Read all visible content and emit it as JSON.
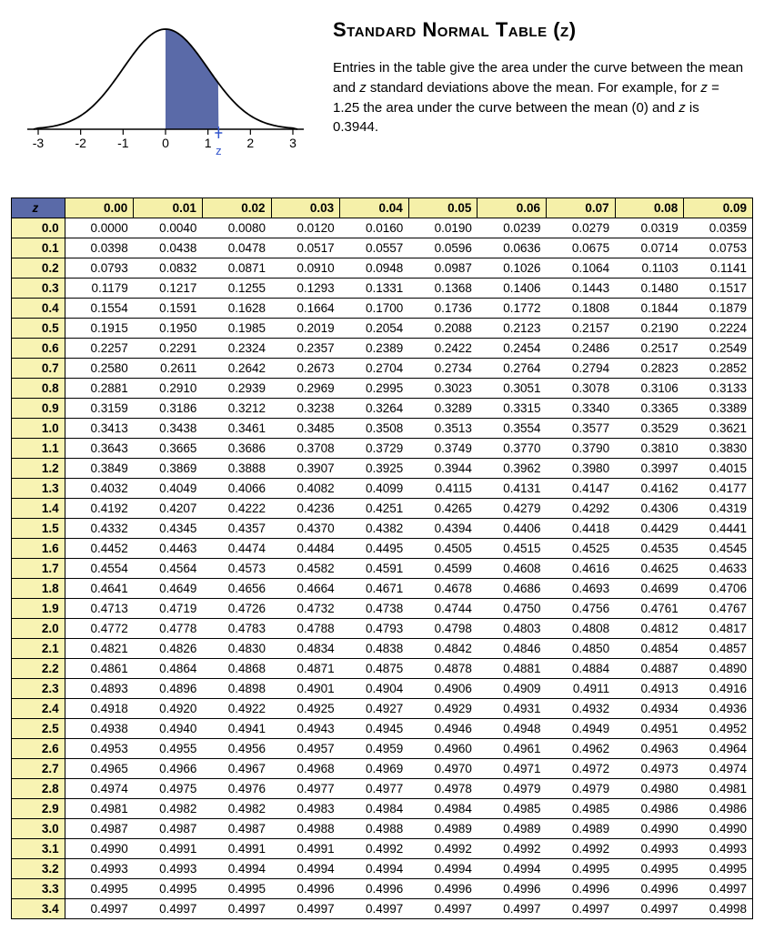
{
  "title": "Standard Normal Table (z)",
  "description_parts": [
    "Entries in the table give the area under the curve between the mean and ",
    "z",
    " standard deviations above the mean. For example, for ",
    "z",
    " = 1.25 the area under the curve between the mean (0)  and ",
    "z",
    "  is 0.3944."
  ],
  "axis_labels": [
    "-3",
    "-2",
    "-1",
    "0",
    "1",
    "2",
    "3"
  ],
  "z_marker": "z",
  "colors": {
    "header_blue": "#5a6aa8",
    "header_yellow": "#f5f0a9",
    "row_yellow": "#f8f3b3",
    "curve_fill": "#5a6aa8",
    "tick_marker": "#3355cc"
  },
  "columns": [
    "z",
    "0.00",
    "0.01",
    "0.02",
    "0.03",
    "0.04",
    "0.05",
    "0.06",
    "0.07",
    "0.08",
    "0.09"
  ],
  "row_headers": [
    "0.0",
    "0.1",
    "0.2",
    "0.3",
    "0.4",
    "0.5",
    "0.6",
    "0.7",
    "0.8",
    "0.9",
    "1.0",
    "1.1",
    "1.2",
    "1.3",
    "1.4",
    "1.5",
    "1.6",
    "1.7",
    "1.8",
    "1.9",
    "2.0",
    "2.1",
    "2.2",
    "2.3",
    "2.4",
    "2.5",
    "2.6",
    "2.7",
    "2.8",
    "2.9",
    "3.0",
    "3.1",
    "3.2",
    "3.3",
    "3.4"
  ],
  "rows": [
    [
      "0.0000",
      "0.0040",
      "0.0080",
      "0.0120",
      "0.0160",
      "0.0190",
      "0.0239",
      "0.0279",
      "0.0319",
      "0.0359"
    ],
    [
      "0.0398",
      "0.0438",
      "0.0478",
      "0.0517",
      "0.0557",
      "0.0596",
      "0.0636",
      "0.0675",
      "0.0714",
      "0.0753"
    ],
    [
      "0.0793",
      "0.0832",
      "0.0871",
      "0.0910",
      "0.0948",
      "0.0987",
      "0.1026",
      "0.1064",
      "0.1103",
      "0.1141"
    ],
    [
      "0.1179",
      "0.1217",
      "0.1255",
      "0.1293",
      "0.1331",
      "0.1368",
      "0.1406",
      "0.1443",
      "0.1480",
      "0.1517"
    ],
    [
      "0.1554",
      "0.1591",
      "0.1628",
      "0.1664",
      "0.1700",
      "0.1736",
      "0.1772",
      "0.1808",
      "0.1844",
      "0.1879"
    ],
    [
      "0.1915",
      "0.1950",
      "0.1985",
      "0.2019",
      "0.2054",
      "0.2088",
      "0.2123",
      "0.2157",
      "0.2190",
      "0.2224"
    ],
    [
      "0.2257",
      "0.2291",
      "0.2324",
      "0.2357",
      "0.2389",
      "0.2422",
      "0.2454",
      "0.2486",
      "0.2517",
      "0.2549"
    ],
    [
      "0.2580",
      "0.2611",
      "0.2642",
      "0.2673",
      "0.2704",
      "0.2734",
      "0.2764",
      "0.2794",
      "0.2823",
      "0.2852"
    ],
    [
      "0.2881",
      "0.2910",
      "0.2939",
      "0.2969",
      "0.2995",
      "0.3023",
      "0.3051",
      "0.3078",
      "0.3106",
      "0.3133"
    ],
    [
      "0.3159",
      "0.3186",
      "0.3212",
      "0.3238",
      "0.3264",
      "0.3289",
      "0.3315",
      "0.3340",
      "0.3365",
      "0.3389"
    ],
    [
      "0.3413",
      "0.3438",
      "0.3461",
      "0.3485",
      "0.3508",
      "0.3513",
      "0.3554",
      "0.3577",
      "0.3529",
      "0.3621"
    ],
    [
      "0.3643",
      "0.3665",
      "0.3686",
      "0.3708",
      "0.3729",
      "0.3749",
      "0.3770",
      "0.3790",
      "0.3810",
      "0.3830"
    ],
    [
      "0.3849",
      "0.3869",
      "0.3888",
      "0.3907",
      "0.3925",
      "0.3944",
      "0.3962",
      "0.3980",
      "0.3997",
      "0.4015"
    ],
    [
      "0.4032",
      "0.4049",
      "0.4066",
      "0.4082",
      "0.4099",
      "0.4115",
      "0.4131",
      "0.4147",
      "0.4162",
      "0.4177"
    ],
    [
      "0.4192",
      "0.4207",
      "0.4222",
      "0.4236",
      "0.4251",
      "0.4265",
      "0.4279",
      "0.4292",
      "0.4306",
      "0.4319"
    ],
    [
      "0.4332",
      "0.4345",
      "0.4357",
      "0.4370",
      "0.4382",
      "0.4394",
      "0.4406",
      "0.4418",
      "0.4429",
      "0.4441"
    ],
    [
      "0.4452",
      "0.4463",
      "0.4474",
      "0.4484",
      "0.4495",
      "0.4505",
      "0.4515",
      "0.4525",
      "0.4535",
      "0.4545"
    ],
    [
      "0.4554",
      "0.4564",
      "0.4573",
      "0.4582",
      "0.4591",
      "0.4599",
      "0.4608",
      "0.4616",
      "0.4625",
      "0.4633"
    ],
    [
      "0.4641",
      "0.4649",
      "0.4656",
      "0.4664",
      "0.4671",
      "0.4678",
      "0.4686",
      "0.4693",
      "0.4699",
      "0.4706"
    ],
    [
      "0.4713",
      "0.4719",
      "0.4726",
      "0.4732",
      "0.4738",
      "0.4744",
      "0.4750",
      "0.4756",
      "0.4761",
      "0.4767"
    ],
    [
      "0.4772",
      "0.4778",
      "0.4783",
      "0.4788",
      "0.4793",
      "0.4798",
      "0.4803",
      "0.4808",
      "0.4812",
      "0.4817"
    ],
    [
      "0.4821",
      "0.4826",
      "0.4830",
      "0.4834",
      "0.4838",
      "0.4842",
      "0.4846",
      "0.4850",
      "0.4854",
      "0.4857"
    ],
    [
      "0.4861",
      "0.4864",
      "0.4868",
      "0.4871",
      "0.4875",
      "0.4878",
      "0.4881",
      "0.4884",
      "0.4887",
      "0.4890"
    ],
    [
      "0.4893",
      "0.4896",
      "0.4898",
      "0.4901",
      "0.4904",
      "0.4906",
      "0.4909",
      "0.4911",
      "0.4913",
      "0.4916"
    ],
    [
      "0.4918",
      "0.4920",
      "0.4922",
      "0.4925",
      "0.4927",
      "0.4929",
      "0.4931",
      "0.4932",
      "0.4934",
      "0.4936"
    ],
    [
      "0.4938",
      "0.4940",
      "0.4941",
      "0.4943",
      "0.4945",
      "0.4946",
      "0.4948",
      "0.4949",
      "0.4951",
      "0.4952"
    ],
    [
      "0.4953",
      "0.4955",
      "0.4956",
      "0.4957",
      "0.4959",
      "0.4960",
      "0.4961",
      "0.4962",
      "0.4963",
      "0.4964"
    ],
    [
      "0.4965",
      "0.4966",
      "0.4967",
      "0.4968",
      "0.4969",
      "0.4970",
      "0.4971",
      "0.4972",
      "0.4973",
      "0.4974"
    ],
    [
      "0.4974",
      "0.4975",
      "0.4976",
      "0.4977",
      "0.4977",
      "0.4978",
      "0.4979",
      "0.4979",
      "0.4980",
      "0.4981"
    ],
    [
      "0.4981",
      "0.4982",
      "0.4982",
      "0.4983",
      "0.4984",
      "0.4984",
      "0.4985",
      "0.4985",
      "0.4986",
      "0.4986"
    ],
    [
      "0.4987",
      "0.4987",
      "0.4987",
      "0.4988",
      "0.4988",
      "0.4989",
      "0.4989",
      "0.4989",
      "0.4990",
      "0.4990"
    ],
    [
      "0.4990",
      "0.4991",
      "0.4991",
      "0.4991",
      "0.4992",
      "0.4992",
      "0.4992",
      "0.4992",
      "0.4993",
      "0.4993"
    ],
    [
      "0.4993",
      "0.4993",
      "0.4994",
      "0.4994",
      "0.4994",
      "0.4994",
      "0.4994",
      "0.4995",
      "0.4995",
      "0.4995"
    ],
    [
      "0.4995",
      "0.4995",
      "0.4995",
      "0.4996",
      "0.4996",
      "0.4996",
      "0.4996",
      "0.4996",
      "0.4996",
      "0.4997"
    ],
    [
      "0.4997",
      "0.4997",
      "0.4997",
      "0.4997",
      "0.4997",
      "0.4997",
      "0.4997",
      "0.4997",
      "0.4997",
      "0.4998"
    ]
  ]
}
